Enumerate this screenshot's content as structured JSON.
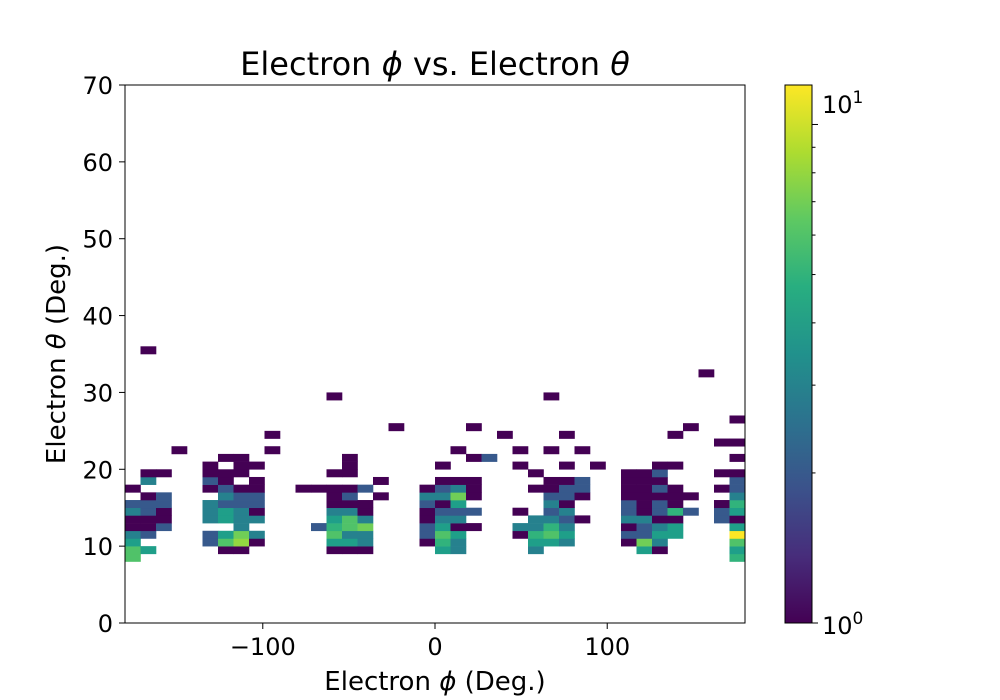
{
  "chart_data": {
    "type": "heatmap",
    "title_prefix": "Electron ",
    "title_sym1": "ϕ",
    "title_mid": " vs. Electron ",
    "title_sym2": "θ",
    "xlabel_prefix": "Electron ",
    "xlabel_sym": "ϕ",
    "xlabel_suffix": " (Deg.)",
    "ylabel_prefix": "Electron ",
    "ylabel_sym": "θ",
    "ylabel_suffix": " (Deg.)",
    "xlim": [
      -180,
      180
    ],
    "ylim": [
      0,
      70
    ],
    "xticks": [
      -100,
      0,
      100
    ],
    "xtick_labels": [
      "−100",
      "0",
      "100"
    ],
    "yticks": [
      0,
      10,
      20,
      30,
      40,
      50,
      60,
      70
    ],
    "ytick_labels": [
      "0",
      "10",
      "20",
      "30",
      "40",
      "50",
      "60",
      "70"
    ],
    "bin_width_x": 9,
    "bin_width_y": 1,
    "colormap": "viridis",
    "color_scale": "log",
    "color_range": [
      1,
      12
    ],
    "colorbar_min_label_base": "10",
    "colorbar_min_label_exp": "0",
    "colorbar_max_label_base": "10",
    "colorbar_max_label_exp": "1",
    "bins": [
      {
        "x": -180,
        "y": 8,
        "v": 6
      },
      {
        "x": -180,
        "y": 9,
        "v": 6
      },
      {
        "x": -180,
        "y": 10,
        "v": 4
      },
      {
        "x": -180,
        "y": 11,
        "v": 3
      },
      {
        "x": -180,
        "y": 12,
        "v": 1
      },
      {
        "x": -180,
        "y": 13,
        "v": 1
      },
      {
        "x": -180,
        "y": 14,
        "v": 3
      },
      {
        "x": -180,
        "y": 15,
        "v": 2
      },
      {
        "x": -180,
        "y": 17,
        "v": 1
      },
      {
        "x": -171,
        "y": 9,
        "v": 4
      },
      {
        "x": -171,
        "y": 11,
        "v": 2
      },
      {
        "x": -171,
        "y": 12,
        "v": 1
      },
      {
        "x": -171,
        "y": 13,
        "v": 1
      },
      {
        "x": -171,
        "y": 14,
        "v": 2
      },
      {
        "x": -171,
        "y": 15,
        "v": 2
      },
      {
        "x": -171,
        "y": 16,
        "v": 1
      },
      {
        "x": -171,
        "y": 18,
        "v": 3
      },
      {
        "x": -171,
        "y": 19,
        "v": 1
      },
      {
        "x": -171,
        "y": 35,
        "v": 1
      },
      {
        "x": -162,
        "y": 12,
        "v": 2
      },
      {
        "x": -162,
        "y": 13,
        "v": 1
      },
      {
        "x": -162,
        "y": 14,
        "v": 1
      },
      {
        "x": -162,
        "y": 15,
        "v": 2
      },
      {
        "x": -162,
        "y": 16,
        "v": 2
      },
      {
        "x": -162,
        "y": 19,
        "v": 1
      },
      {
        "x": -153,
        "y": 22,
        "v": 1
      },
      {
        "x": -135,
        "y": 10,
        "v": 2
      },
      {
        "x": -135,
        "y": 11,
        "v": 2
      },
      {
        "x": -135,
        "y": 13,
        "v": 3
      },
      {
        "x": -135,
        "y": 14,
        "v": 3
      },
      {
        "x": -135,
        "y": 15,
        "v": 3
      },
      {
        "x": -135,
        "y": 17,
        "v": 1
      },
      {
        "x": -135,
        "y": 18,
        "v": 2
      },
      {
        "x": -135,
        "y": 19,
        "v": 1
      },
      {
        "x": -135,
        "y": 20,
        "v": 1
      },
      {
        "x": -126,
        "y": 9,
        "v": 1
      },
      {
        "x": -126,
        "y": 10,
        "v": 6
      },
      {
        "x": -126,
        "y": 11,
        "v": 4
      },
      {
        "x": -126,
        "y": 13,
        "v": 4
      },
      {
        "x": -126,
        "y": 14,
        "v": 4
      },
      {
        "x": -126,
        "y": 15,
        "v": 2
      },
      {
        "x": -126,
        "y": 16,
        "v": 3
      },
      {
        "x": -126,
        "y": 17,
        "v": 2
      },
      {
        "x": -126,
        "y": 18,
        "v": 1
      },
      {
        "x": -126,
        "y": 19,
        "v": 1
      },
      {
        "x": -126,
        "y": 21,
        "v": 1
      },
      {
        "x": -117,
        "y": 9,
        "v": 1
      },
      {
        "x": -117,
        "y": 10,
        "v": 8
      },
      {
        "x": -117,
        "y": 11,
        "v": 7
      },
      {
        "x": -117,
        "y": 12,
        "v": 3
      },
      {
        "x": -117,
        "y": 13,
        "v": 3
      },
      {
        "x": -117,
        "y": 14,
        "v": 3
      },
      {
        "x": -117,
        "y": 15,
        "v": 2
      },
      {
        "x": -117,
        "y": 16,
        "v": 2
      },
      {
        "x": -117,
        "y": 17,
        "v": 1
      },
      {
        "x": -117,
        "y": 19,
        "v": 1
      },
      {
        "x": -117,
        "y": 20,
        "v": 1
      },
      {
        "x": -117,
        "y": 21,
        "v": 1
      },
      {
        "x": -108,
        "y": 10,
        "v": 1
      },
      {
        "x": -108,
        "y": 11,
        "v": 3
      },
      {
        "x": -108,
        "y": 13,
        "v": 3
      },
      {
        "x": -108,
        "y": 14,
        "v": 1
      },
      {
        "x": -108,
        "y": 15,
        "v": 2
      },
      {
        "x": -108,
        "y": 16,
        "v": 2
      },
      {
        "x": -108,
        "y": 17,
        "v": 1
      },
      {
        "x": -108,
        "y": 18,
        "v": 1
      },
      {
        "x": -108,
        "y": 20,
        "v": 1
      },
      {
        "x": -99,
        "y": 22,
        "v": 1
      },
      {
        "x": -99,
        "y": 24,
        "v": 1
      },
      {
        "x": -81,
        "y": 17,
        "v": 1
      },
      {
        "x": -72,
        "y": 12,
        "v": 2
      },
      {
        "x": -72,
        "y": 17,
        "v": 1
      },
      {
        "x": -63,
        "y": 9,
        "v": 1
      },
      {
        "x": -63,
        "y": 10,
        "v": 4
      },
      {
        "x": -63,
        "y": 11,
        "v": 6
      },
      {
        "x": -63,
        "y": 12,
        "v": 5
      },
      {
        "x": -63,
        "y": 13,
        "v": 4
      },
      {
        "x": -63,
        "y": 14,
        "v": 3
      },
      {
        "x": -63,
        "y": 15,
        "v": 1
      },
      {
        "x": -63,
        "y": 16,
        "v": 1
      },
      {
        "x": -63,
        "y": 17,
        "v": 1
      },
      {
        "x": -63,
        "y": 19,
        "v": 1
      },
      {
        "x": -63,
        "y": 29,
        "v": 1
      },
      {
        "x": -54,
        "y": 9,
        "v": 1
      },
      {
        "x": -54,
        "y": 10,
        "v": 4
      },
      {
        "x": -54,
        "y": 11,
        "v": 3
      },
      {
        "x": -54,
        "y": 12,
        "v": 6
      },
      {
        "x": -54,
        "y": 13,
        "v": 6
      },
      {
        "x": -54,
        "y": 14,
        "v": 3
      },
      {
        "x": -54,
        "y": 15,
        "v": 1
      },
      {
        "x": -54,
        "y": 16,
        "v": 2
      },
      {
        "x": -54,
        "y": 17,
        "v": 1
      },
      {
        "x": -54,
        "y": 19,
        "v": 1
      },
      {
        "x": -54,
        "y": 20,
        "v": 1
      },
      {
        "x": -54,
        "y": 21,
        "v": 1
      },
      {
        "x": -45,
        "y": 9,
        "v": 1
      },
      {
        "x": -45,
        "y": 10,
        "v": 3
      },
      {
        "x": -45,
        "y": 11,
        "v": 3
      },
      {
        "x": -45,
        "y": 12,
        "v": 7
      },
      {
        "x": -45,
        "y": 13,
        "v": 3
      },
      {
        "x": -45,
        "y": 14,
        "v": 1
      },
      {
        "x": -45,
        "y": 15,
        "v": 1
      },
      {
        "x": -45,
        "y": 17,
        "v": 2
      },
      {
        "x": -36,
        "y": 16,
        "v": 1
      },
      {
        "x": -36,
        "y": 18,
        "v": 1
      },
      {
        "x": -27,
        "y": 25,
        "v": 1
      },
      {
        "x": -9,
        "y": 10,
        "v": 1
      },
      {
        "x": -9,
        "y": 11,
        "v": 2
      },
      {
        "x": -9,
        "y": 12,
        "v": 2
      },
      {
        "x": -9,
        "y": 13,
        "v": 1
      },
      {
        "x": -9,
        "y": 14,
        "v": 1
      },
      {
        "x": -9,
        "y": 15,
        "v": 2
      },
      {
        "x": -9,
        "y": 16,
        "v": 3
      },
      {
        "x": -9,
        "y": 17,
        "v": 1
      },
      {
        "x": 0,
        "y": 9,
        "v": 4
      },
      {
        "x": 0,
        "y": 10,
        "v": 5
      },
      {
        "x": 0,
        "y": 11,
        "v": 6
      },
      {
        "x": 0,
        "y": 12,
        "v": 4
      },
      {
        "x": 0,
        "y": 13,
        "v": 3
      },
      {
        "x": 0,
        "y": 14,
        "v": 2
      },
      {
        "x": 0,
        "y": 15,
        "v": 1
      },
      {
        "x": 0,
        "y": 16,
        "v": 3
      },
      {
        "x": 0,
        "y": 17,
        "v": 2
      },
      {
        "x": 0,
        "y": 18,
        "v": 1
      },
      {
        "x": 0,
        "y": 20,
        "v": 1
      },
      {
        "x": 9,
        "y": 9,
        "v": 3
      },
      {
        "x": 9,
        "y": 10,
        "v": 3
      },
      {
        "x": 9,
        "y": 11,
        "v": 4
      },
      {
        "x": 9,
        "y": 12,
        "v": 1
      },
      {
        "x": 9,
        "y": 13,
        "v": 3
      },
      {
        "x": 9,
        "y": 14,
        "v": 2
      },
      {
        "x": 9,
        "y": 15,
        "v": 4
      },
      {
        "x": 9,
        "y": 16,
        "v": 7
      },
      {
        "x": 9,
        "y": 17,
        "v": 3
      },
      {
        "x": 9,
        "y": 18,
        "v": 1
      },
      {
        "x": 9,
        "y": 22,
        "v": 1
      },
      {
        "x": 18,
        "y": 12,
        "v": 1
      },
      {
        "x": 18,
        "y": 14,
        "v": 2
      },
      {
        "x": 18,
        "y": 16,
        "v": 1
      },
      {
        "x": 18,
        "y": 17,
        "v": 1
      },
      {
        "x": 18,
        "y": 18,
        "v": 1
      },
      {
        "x": 18,
        "y": 21,
        "v": 1
      },
      {
        "x": 18,
        "y": 25,
        "v": 1
      },
      {
        "x": 27,
        "y": 21,
        "v": 2
      },
      {
        "x": 36,
        "y": 24,
        "v": 1
      },
      {
        "x": 45,
        "y": 11,
        "v": 1
      },
      {
        "x": 45,
        "y": 12,
        "v": 3
      },
      {
        "x": 45,
        "y": 14,
        "v": 1
      },
      {
        "x": 45,
        "y": 20,
        "v": 1
      },
      {
        "x": 45,
        "y": 22,
        "v": 1
      },
      {
        "x": 54,
        "y": 9,
        "v": 3
      },
      {
        "x": 54,
        "y": 10,
        "v": 4
      },
      {
        "x": 54,
        "y": 11,
        "v": 5
      },
      {
        "x": 54,
        "y": 12,
        "v": 3
      },
      {
        "x": 54,
        "y": 13,
        "v": 3
      },
      {
        "x": 54,
        "y": 17,
        "v": 1
      },
      {
        "x": 54,
        "y": 19,
        "v": 1
      },
      {
        "x": 63,
        "y": 10,
        "v": 4
      },
      {
        "x": 63,
        "y": 11,
        "v": 6
      },
      {
        "x": 63,
        "y": 12,
        "v": 5
      },
      {
        "x": 63,
        "y": 13,
        "v": 3
      },
      {
        "x": 63,
        "y": 14,
        "v": 2
      },
      {
        "x": 63,
        "y": 15,
        "v": 3
      },
      {
        "x": 63,
        "y": 16,
        "v": 2
      },
      {
        "x": 63,
        "y": 17,
        "v": 1
      },
      {
        "x": 63,
        "y": 18,
        "v": 1
      },
      {
        "x": 63,
        "y": 22,
        "v": 1
      },
      {
        "x": 63,
        "y": 29,
        "v": 1
      },
      {
        "x": 72,
        "y": 10,
        "v": 3
      },
      {
        "x": 72,
        "y": 11,
        "v": 4
      },
      {
        "x": 72,
        "y": 12,
        "v": 3
      },
      {
        "x": 72,
        "y": 13,
        "v": 2
      },
      {
        "x": 72,
        "y": 14,
        "v": 3
      },
      {
        "x": 72,
        "y": 15,
        "v": 1
      },
      {
        "x": 72,
        "y": 16,
        "v": 2
      },
      {
        "x": 72,
        "y": 17,
        "v": 2
      },
      {
        "x": 72,
        "y": 18,
        "v": 1
      },
      {
        "x": 72,
        "y": 20,
        "v": 1
      },
      {
        "x": 72,
        "y": 24,
        "v": 1
      },
      {
        "x": 81,
        "y": 13,
        "v": 1
      },
      {
        "x": 81,
        "y": 16,
        "v": 1
      },
      {
        "x": 81,
        "y": 17,
        "v": 2
      },
      {
        "x": 81,
        "y": 18,
        "v": 2
      },
      {
        "x": 81,
        "y": 22,
        "v": 1
      },
      {
        "x": 90,
        "y": 20,
        "v": 1
      },
      {
        "x": 108,
        "y": 10,
        "v": 1
      },
      {
        "x": 108,
        "y": 11,
        "v": 2
      },
      {
        "x": 108,
        "y": 12,
        "v": 1
      },
      {
        "x": 108,
        "y": 13,
        "v": 3
      },
      {
        "x": 108,
        "y": 14,
        "v": 2
      },
      {
        "x": 108,
        "y": 15,
        "v": 2
      },
      {
        "x": 108,
        "y": 16,
        "v": 1
      },
      {
        "x": 108,
        "y": 17,
        "v": 1
      },
      {
        "x": 108,
        "y": 18,
        "v": 1
      },
      {
        "x": 108,
        "y": 19,
        "v": 1
      },
      {
        "x": 117,
        "y": 9,
        "v": 4
      },
      {
        "x": 117,
        "y": 10,
        "v": 7
      },
      {
        "x": 117,
        "y": 11,
        "v": 2
      },
      {
        "x": 117,
        "y": 12,
        "v": 2
      },
      {
        "x": 117,
        "y": 13,
        "v": 3
      },
      {
        "x": 117,
        "y": 14,
        "v": 1
      },
      {
        "x": 117,
        "y": 15,
        "v": 1
      },
      {
        "x": 117,
        "y": 16,
        "v": 1
      },
      {
        "x": 117,
        "y": 17,
        "v": 1
      },
      {
        "x": 117,
        "y": 18,
        "v": 1
      },
      {
        "x": 117,
        "y": 19,
        "v": 1
      },
      {
        "x": 126,
        "y": 9,
        "v": 1
      },
      {
        "x": 126,
        "y": 10,
        "v": 3
      },
      {
        "x": 126,
        "y": 11,
        "v": 4
      },
      {
        "x": 126,
        "y": 12,
        "v": 3
      },
      {
        "x": 126,
        "y": 13,
        "v": 1
      },
      {
        "x": 126,
        "y": 14,
        "v": 2
      },
      {
        "x": 126,
        "y": 15,
        "v": 2
      },
      {
        "x": 126,
        "y": 16,
        "v": 1
      },
      {
        "x": 126,
        "y": 17,
        "v": 2
      },
      {
        "x": 126,
        "y": 18,
        "v": 1
      },
      {
        "x": 126,
        "y": 19,
        "v": 2
      },
      {
        "x": 126,
        "y": 20,
        "v": 1
      },
      {
        "x": 135,
        "y": 11,
        "v": 4
      },
      {
        "x": 135,
        "y": 12,
        "v": 4
      },
      {
        "x": 135,
        "y": 13,
        "v": 1
      },
      {
        "x": 135,
        "y": 14,
        "v": 5
      },
      {
        "x": 135,
        "y": 15,
        "v": 1
      },
      {
        "x": 135,
        "y": 16,
        "v": 1
      },
      {
        "x": 135,
        "y": 17,
        "v": 1
      },
      {
        "x": 135,
        "y": 20,
        "v": 1
      },
      {
        "x": 135,
        "y": 24,
        "v": 1
      },
      {
        "x": 144,
        "y": 14,
        "v": 2
      },
      {
        "x": 144,
        "y": 16,
        "v": 1
      },
      {
        "x": 144,
        "y": 25,
        "v": 1
      },
      {
        "x": 153,
        "y": 32,
        "v": 1
      },
      {
        "x": 162,
        "y": 13,
        "v": 2
      },
      {
        "x": 162,
        "y": 14,
        "v": 2
      },
      {
        "x": 162,
        "y": 15,
        "v": 1
      },
      {
        "x": 162,
        "y": 17,
        "v": 1
      },
      {
        "x": 162,
        "y": 19,
        "v": 1
      },
      {
        "x": 162,
        "y": 23,
        "v": 1
      },
      {
        "x": 171,
        "y": 8,
        "v": 5
      },
      {
        "x": 171,
        "y": 9,
        "v": 4
      },
      {
        "x": 171,
        "y": 10,
        "v": 6
      },
      {
        "x": 171,
        "y": 11,
        "v": 12
      },
      {
        "x": 171,
        "y": 12,
        "v": 4
      },
      {
        "x": 171,
        "y": 13,
        "v": 1
      },
      {
        "x": 171,
        "y": 14,
        "v": 4
      },
      {
        "x": 171,
        "y": 15,
        "v": 5
      },
      {
        "x": 171,
        "y": 16,
        "v": 3
      },
      {
        "x": 171,
        "y": 17,
        "v": 2
      },
      {
        "x": 171,
        "y": 18,
        "v": 2
      },
      {
        "x": 171,
        "y": 19,
        "v": 1
      },
      {
        "x": 171,
        "y": 21,
        "v": 1
      },
      {
        "x": 171,
        "y": 23,
        "v": 1
      },
      {
        "x": 171,
        "y": 26,
        "v": 1
      }
    ]
  }
}
